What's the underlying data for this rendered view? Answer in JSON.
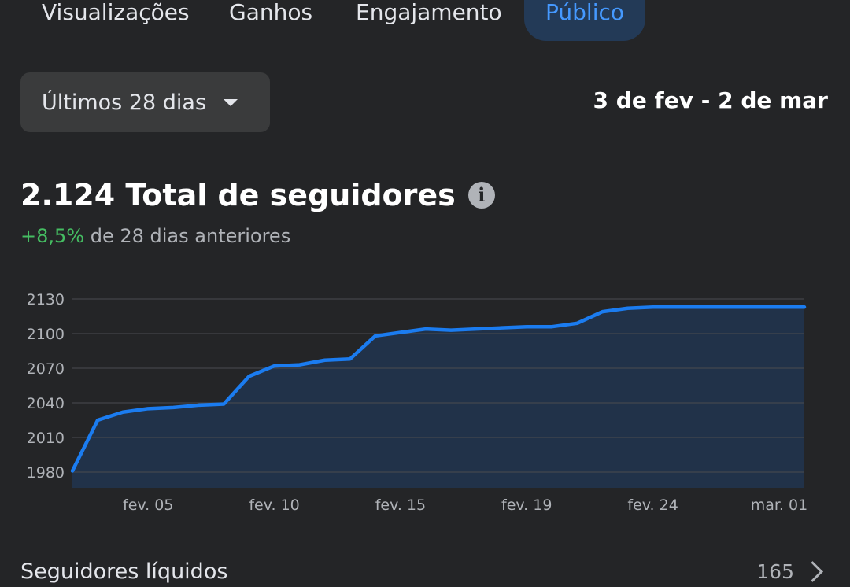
{
  "tabs": [
    {
      "label": "Visualizações",
      "active": false
    },
    {
      "label": "Ganhos",
      "active": false
    },
    {
      "label": "Engajamento",
      "active": false
    },
    {
      "label": "Público",
      "active": true
    }
  ],
  "filter": {
    "selected": "Últimos 28 dias",
    "icon": "caret-down-icon"
  },
  "date_range": "3 de fev - 2 de mar",
  "summary": {
    "title": "2.124 Total de seguidores",
    "change": "+8,5%",
    "change_suffix": "de 28 dias anteriores",
    "info_icon": "info-icon"
  },
  "chart_data": {
    "type": "area",
    "title": "",
    "xlabel": "",
    "ylabel": "",
    "ylim": [
      1966,
      2130
    ],
    "yticks": [
      1980,
      2010,
      2040,
      2070,
      2100,
      2130
    ],
    "xticks": [
      {
        "label": "fev. 05",
        "day": 4
      },
      {
        "label": "fev. 10",
        "day": 9
      },
      {
        "label": "fev. 15",
        "day": 14
      },
      {
        "label": "fev. 19",
        "day": 19
      },
      {
        "label": "fev. 24",
        "day": 24
      },
      {
        "label": "mar. 01",
        "day": 29
      }
    ],
    "x": [
      1,
      2,
      3,
      4,
      5,
      6,
      7,
      8,
      9,
      10,
      11,
      12,
      13,
      14,
      15,
      16,
      17,
      18,
      19,
      20,
      21,
      22,
      23,
      24,
      25,
      26,
      27,
      28,
      29,
      30
    ],
    "values": [
      1981,
      2025,
      2032,
      2035,
      2036,
      2038,
      2039,
      2063,
      2072,
      2073,
      2077,
      2078,
      2098,
      2101,
      2104,
      2103,
      2104,
      2105,
      2106,
      2106,
      2109,
      2119,
      2122,
      2123,
      2123,
      2123,
      2123,
      2123,
      2123,
      2123
    ],
    "grid": true,
    "line_color": "#1b7cf0",
    "fill_color": "#213249"
  },
  "footer": {
    "label": "Seguidores líquidos",
    "value": "165",
    "icon": "chevron-right-icon"
  }
}
